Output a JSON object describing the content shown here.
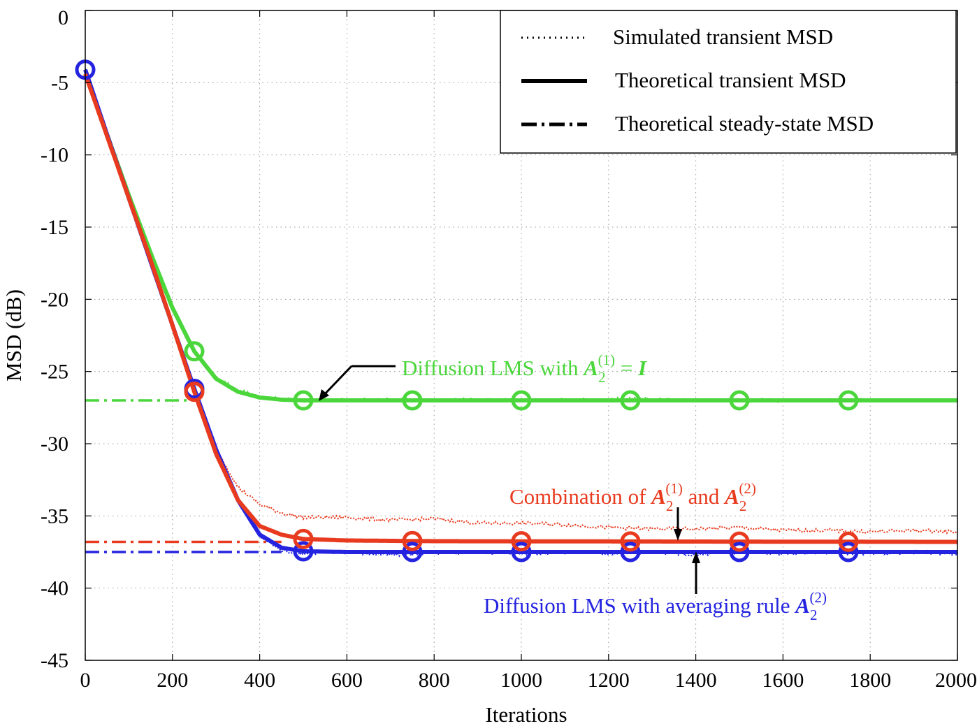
{
  "chart_data": {
    "type": "line",
    "xlabel": "Iterations",
    "ylabel": "MSD (dB)",
    "xlim": [
      0,
      2000
    ],
    "ylim": [
      -45,
      0
    ],
    "xticks": [
      0,
      200,
      400,
      600,
      800,
      1000,
      1200,
      1400,
      1600,
      1800,
      2000
    ],
    "yticks": [
      0,
      -5,
      -10,
      -15,
      -20,
      -25,
      -30,
      -35,
      -40,
      -45
    ],
    "xtick_labels": [
      "0",
      "200",
      "400",
      "600",
      "800",
      "1000",
      "1200",
      "1400",
      "1600",
      "1800",
      "2000"
    ],
    "ytick_labels": [
      "0",
      "-5",
      "-10",
      "-15",
      "-20",
      "-25",
      "-30",
      "-35",
      "-40",
      "-45"
    ],
    "grid": true,
    "legend_placement": "top-right",
    "legend": [
      {
        "label": "Simulated transient MSD",
        "style": "dotted"
      },
      {
        "label": "Theoretical transient MSD",
        "style": "solid"
      },
      {
        "label": "Theoretical steady-state MSD",
        "style": "dash-dot"
      }
    ],
    "series": [
      {
        "name": "Diffusion LMS with A2(1) = I",
        "color": "#4bd63c",
        "steady_state": -27.0,
        "steady_state_xrange": [
          0,
          250
        ],
        "theoretical": [
          [
            0,
            -4.4
          ],
          [
            50,
            -8.6
          ],
          [
            100,
            -12.8
          ],
          [
            150,
            -16.8
          ],
          [
            200,
            -20.6
          ],
          [
            250,
            -23.6
          ],
          [
            300,
            -25.5
          ],
          [
            350,
            -26.4
          ],
          [
            400,
            -26.8
          ],
          [
            450,
            -26.95
          ],
          [
            500,
            -27.0
          ],
          [
            1000,
            -27.0
          ],
          [
            1500,
            -27.0
          ],
          [
            2000,
            -27.0
          ]
        ],
        "simulated": [
          [
            0,
            -4.3
          ],
          [
            50,
            -8.5
          ],
          [
            100,
            -12.6
          ],
          [
            150,
            -16.6
          ],
          [
            200,
            -20.4
          ],
          [
            250,
            -23.5
          ],
          [
            300,
            -25.4
          ],
          [
            350,
            -26.3
          ],
          [
            400,
            -26.8
          ],
          [
            450,
            -26.9
          ],
          [
            500,
            -27.0
          ],
          [
            750,
            -26.95
          ],
          [
            1000,
            -27.0
          ],
          [
            1250,
            -26.9
          ],
          [
            1500,
            -27.0
          ],
          [
            1750,
            -27.0
          ],
          [
            2000,
            -27.0
          ]
        ],
        "markers_x": [
          250,
          500,
          750,
          1000,
          1250,
          1500,
          1750
        ]
      },
      {
        "name": "Diffusion LMS with averaging rule A2(2)",
        "color": "#2424e0",
        "steady_state": -37.5,
        "steady_state_xrange": [
          0,
          450
        ],
        "theoretical": [
          [
            0,
            -4.1
          ],
          [
            50,
            -8.6
          ],
          [
            100,
            -13.0
          ],
          [
            150,
            -17.4
          ],
          [
            200,
            -21.8
          ],
          [
            250,
            -26.2
          ],
          [
            300,
            -30.4
          ],
          [
            350,
            -33.9
          ],
          [
            400,
            -36.3
          ],
          [
            450,
            -37.2
          ],
          [
            500,
            -37.45
          ],
          [
            600,
            -37.5
          ],
          [
            2000,
            -37.5
          ]
        ],
        "simulated": [
          [
            0,
            -4.0
          ],
          [
            50,
            -8.5
          ],
          [
            100,
            -12.9
          ],
          [
            150,
            -17.3
          ],
          [
            200,
            -21.7
          ],
          [
            250,
            -26.1
          ],
          [
            300,
            -30.3
          ],
          [
            350,
            -33.8
          ],
          [
            400,
            -36.4
          ],
          [
            450,
            -37.4
          ],
          [
            500,
            -37.6
          ],
          [
            600,
            -37.5
          ],
          [
            700,
            -37.7
          ],
          [
            800,
            -37.6
          ],
          [
            900,
            -37.5
          ],
          [
            1000,
            -37.6
          ],
          [
            1100,
            -37.5
          ],
          [
            1200,
            -37.6
          ],
          [
            1300,
            -37.5
          ],
          [
            1400,
            -37.7
          ],
          [
            1500,
            -37.5
          ],
          [
            1600,
            -37.6
          ],
          [
            1700,
            -37.5
          ],
          [
            1800,
            -37.6
          ],
          [
            1900,
            -37.5
          ],
          [
            2000,
            -37.6
          ]
        ],
        "markers_x": [
          0,
          250,
          500,
          750,
          1000,
          1250,
          1500,
          1750
        ]
      },
      {
        "name": "Combination of A2(1) and A2(2)",
        "color": "#e83a1e",
        "steady_state": -36.8,
        "steady_state_xrange": [
          0,
          450
        ],
        "theoretical": [
          [
            0,
            -4.4
          ],
          [
            50,
            -8.7
          ],
          [
            100,
            -13.0
          ],
          [
            150,
            -17.3
          ],
          [
            200,
            -21.8
          ],
          [
            250,
            -26.4
          ],
          [
            300,
            -30.7
          ],
          [
            350,
            -33.9
          ],
          [
            400,
            -35.7
          ],
          [
            450,
            -36.3
          ],
          [
            500,
            -36.6
          ],
          [
            600,
            -36.7
          ],
          [
            800,
            -36.75
          ],
          [
            2000,
            -36.8
          ]
        ],
        "simulated": [
          [
            0,
            -4.3
          ],
          [
            50,
            -8.6
          ],
          [
            100,
            -12.9
          ],
          [
            150,
            -17.2
          ],
          [
            200,
            -21.6
          ],
          [
            250,
            -26.2
          ],
          [
            300,
            -30.3
          ],
          [
            350,
            -33.0
          ],
          [
            400,
            -34.2
          ],
          [
            450,
            -34.8
          ],
          [
            500,
            -35.1
          ],
          [
            600,
            -35.1
          ],
          [
            700,
            -35.3
          ],
          [
            800,
            -35.2
          ],
          [
            900,
            -35.5
          ],
          [
            1000,
            -35.5
          ],
          [
            1100,
            -35.6
          ],
          [
            1200,
            -35.8
          ],
          [
            1300,
            -35.9
          ],
          [
            1400,
            -35.9
          ],
          [
            1500,
            -35.8
          ],
          [
            1600,
            -36.0
          ],
          [
            1700,
            -36.0
          ],
          [
            1800,
            -36.1
          ],
          [
            1900,
            -36.0
          ],
          [
            2000,
            -36.1
          ]
        ],
        "markers_x": [
          250,
          500,
          750,
          1000,
          1250,
          1500,
          1750
        ]
      }
    ],
    "annotations": [
      {
        "id": "green",
        "prefix": "Diffusion LMS with ",
        "math": "A",
        "sub": "2",
        "sup": "(1)",
        "suffix": " = ",
        "suffix_math": "I",
        "target": [
          530,
          -27.0
        ]
      },
      {
        "id": "red",
        "prefix": "Combination of ",
        "math": "A",
        "sub": "2",
        "sup": "(1)",
        "middle": " and ",
        "math2": "A",
        "sub2": "2",
        "sup2": "(2)",
        "target": [
          1360,
          -36.7
        ]
      },
      {
        "id": "blue",
        "prefix": "Diffusion LMS with averaging rule ",
        "math": "A",
        "sub": "2",
        "sup": "(2)",
        "target": [
          1400,
          -37.5
        ]
      }
    ]
  }
}
